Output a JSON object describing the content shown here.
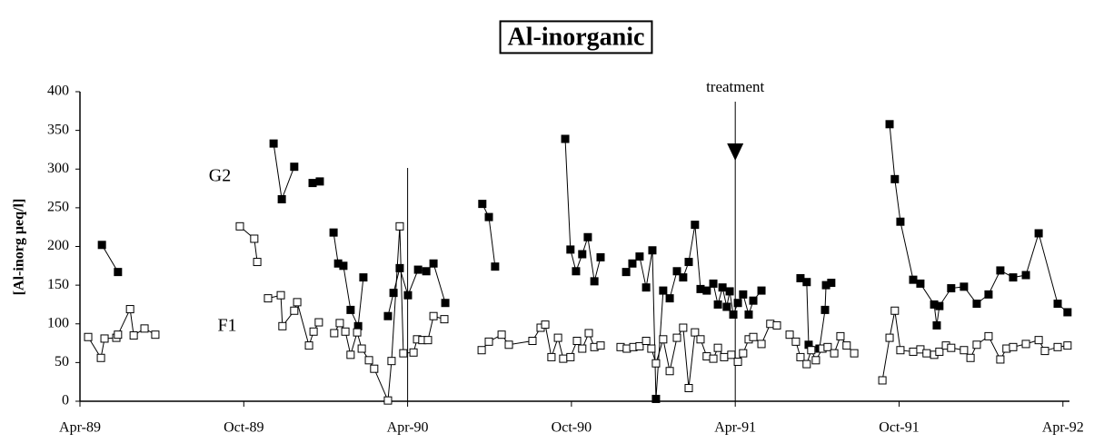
{
  "chart_data": {
    "type": "line",
    "title": "Al-inorganic",
    "y_label": "[Al-inorg µeq/l]",
    "xlim": [
      1989.25,
      1992.27
    ],
    "xticks": [
      {
        "value": 1989.25,
        "label": "Apr-89"
      },
      {
        "value": 1989.75,
        "label": "Oct-89"
      },
      {
        "value": 1990.25,
        "label": "Apr-90"
      },
      {
        "value": 1990.75,
        "label": "Oct-90"
      },
      {
        "value": 1991.25,
        "label": "Apr-91"
      },
      {
        "value": 1991.75,
        "label": "Oct-91"
      },
      {
        "value": 1992.25,
        "label": "Apr-92"
      }
    ],
    "ylim": [
      0,
      400
    ],
    "yticks": [
      0,
      50,
      100,
      150,
      200,
      250,
      300,
      350,
      400
    ],
    "vlines": [
      1990.25,
      1991.25
    ],
    "annotations": [
      {
        "text": "treatment",
        "x": 1991.25
      }
    ],
    "series": [
      {
        "name": "G2",
        "color": "#000000",
        "marker_fill": "#000000",
        "x": [
          1989.317,
          1989.366,
          null,
          1989.841,
          1989.866,
          1989.904,
          null,
          1989.96,
          1989.982,
          null,
          1990.024,
          1990.038,
          1990.054,
          1990.076,
          1990.099,
          1990.115,
          null,
          1990.19,
          1990.207,
          1990.226,
          1990.251,
          1990.282,
          1990.307,
          1990.329,
          1990.365,
          null,
          1990.478,
          1990.498,
          1990.517,
          null,
          1990.731,
          1990.747,
          1990.764,
          1990.783,
          1990.8,
          1990.82,
          1990.839,
          null,
          1990.917,
          1990.936,
          1990.958,
          1990.978,
          1990.997,
          1991.008,
          1991.03,
          1991.05,
          1991.072,
          1991.091,
          1991.108,
          1991.127,
          1991.144,
          1991.163,
          1991.183,
          1991.197,
          1991.211,
          1991.224,
          1991.233,
          1991.244,
          1991.258,
          1991.274,
          1991.291,
          1991.305,
          1991.33,
          null,
          1991.449,
          1991.468,
          1991.474,
          1991.507,
          1991.524,
          1991.527,
          1991.543,
          null,
          1991.721,
          1991.737,
          1991.754,
          1991.793,
          1991.815,
          1991.857,
          1991.865,
          1991.873,
          1991.909,
          1991.948,
          1991.987,
          1992.023,
          1992.059,
          1992.098,
          1992.137,
          1992.176,
          1992.234,
          1992.264
        ],
        "values": [
          202,
          167,
          null,
          333,
          261,
          303,
          null,
          282,
          284,
          null,
          218,
          178,
          175,
          118,
          97,
          160,
          null,
          110,
          140,
          172,
          137,
          170,
          168,
          178,
          127,
          null,
          255,
          238,
          174,
          null,
          339,
          196,
          168,
          190,
          212,
          155,
          186,
          null,
          167,
          178,
          187,
          147,
          195,
          3,
          143,
          133,
          168,
          160,
          180,
          228,
          145,
          143,
          152,
          125,
          147,
          122,
          142,
          112,
          127,
          138,
          112,
          130,
          143,
          null,
          159,
          154,
          73,
          68,
          118,
          150,
          153,
          null,
          358,
          287,
          232,
          157,
          152,
          125,
          98,
          123,
          146,
          148,
          126,
          138,
          169,
          160,
          163,
          217,
          126,
          115
        ]
      },
      {
        "name": "F1",
        "color": "#000000",
        "marker_fill": "#ffffff",
        "x": [
          1989.275,
          1989.314,
          1989.325,
          1989.361,
          1989.366,
          1989.403,
          1989.414,
          1989.447,
          1989.48,
          null,
          1989.738,
          1989.782,
          1989.791,
          null,
          1989.824,
          1989.863,
          1989.868,
          1989.904,
          1989.913,
          1989.949,
          1989.963,
          1989.979,
          null,
          1990.026,
          1990.043,
          1990.06,
          1990.076,
          1990.096,
          1990.11,
          1990.132,
          1990.148,
          1990.19,
          1990.201,
          1990.226,
          1990.237,
          1990.268,
          1990.279,
          1990.295,
          1990.312,
          1990.329,
          1990.362,
          null,
          1990.476,
          1990.498,
          1990.537,
          1990.559,
          1990.631,
          1990.656,
          1990.67,
          1990.689,
          1990.709,
          1990.725,
          1990.747,
          1990.767,
          1990.783,
          1990.803,
          1990.82,
          1990.839,
          null,
          1990.9,
          1990.919,
          1990.939,
          1990.958,
          1990.978,
          1990.994,
          1991.008,
          1991.03,
          1991.05,
          1991.072,
          1991.091,
          1991.108,
          1991.127,
          1991.144,
          1991.163,
          1991.183,
          1991.197,
          1991.216,
          1991.238,
          1991.258,
          1991.274,
          1991.291,
          1991.305,
          1991.33,
          1991.357,
          1991.377,
          null,
          1991.416,
          1991.435,
          1991.449,
          1991.468,
          1991.482,
          1991.496,
          1991.516,
          1991.532,
          1991.552,
          1991.571,
          1991.59,
          1991.613,
          null,
          1991.699,
          1991.721,
          1991.737,
          1991.754,
          1991.793,
          1991.815,
          1991.834,
          1991.857,
          1991.873,
          1991.893,
          1991.909,
          1991.948,
          1991.968,
          1991.987,
          1992.023,
          1992.059,
          1992.078,
          1992.098,
          1992.137,
          1992.176,
          1992.195,
          1992.234,
          1992.264
        ],
        "values": [
          83,
          56,
          81,
          82,
          86,
          119,
          85,
          94,
          86,
          null,
          226,
          210,
          180,
          null,
          133,
          137,
          97,
          117,
          128,
          72,
          90,
          102,
          null,
          88,
          101,
          90,
          60,
          89,
          68,
          53,
          42,
          1,
          52,
          226,
          62,
          63,
          80,
          79,
          79,
          110,
          106,
          null,
          66,
          77,
          86,
          73,
          78,
          95,
          99,
          57,
          82,
          55,
          57,
          78,
          68,
          88,
          70,
          72,
          null,
          70,
          68,
          70,
          71,
          78,
          68,
          49,
          80,
          39,
          82,
          95,
          17,
          89,
          80,
          58,
          55,
          69,
          57,
          60,
          51,
          62,
          80,
          83,
          74,
          100,
          98,
          null,
          86,
          77,
          57,
          48,
          66,
          53,
          68,
          70,
          62,
          84,
          72,
          62,
          null,
          27,
          82,
          117,
          66,
          64,
          67,
          62,
          60,
          64,
          72,
          69,
          66,
          56,
          73,
          84,
          54,
          68,
          70,
          74,
          79,
          65,
          70,
          72
        ]
      }
    ]
  }
}
